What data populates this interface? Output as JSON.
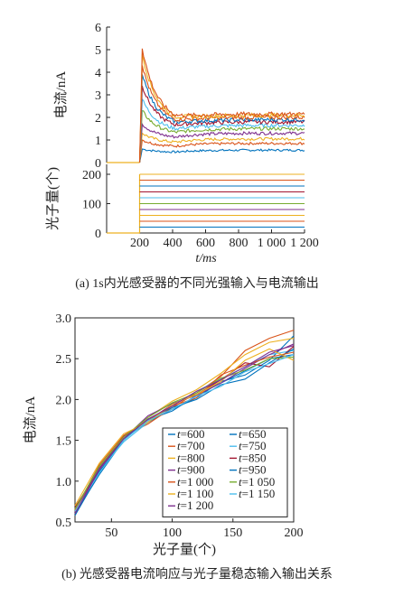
{
  "chart_data": [
    {
      "panel": "top",
      "type": "line",
      "ylabel": "电流/nA",
      "ylim": [
        0,
        6
      ],
      "yticks": [
        0,
        1,
        2,
        3,
        4,
        5,
        6
      ],
      "xlim": [
        0,
        1200
      ],
      "series": [
        {
          "color": "#0072BD",
          "peak": 0.6,
          "steady": 0.55
        },
        {
          "color": "#D95319",
          "peak": 1.0,
          "steady": 0.85
        },
        {
          "color": "#EDB120",
          "peak": 1.3,
          "steady": 1.05
        },
        {
          "color": "#7E2F8E",
          "peak": 1.7,
          "steady": 1.3
        },
        {
          "color": "#77AC30",
          "peak": 2.3,
          "steady": 1.5
        },
        {
          "color": "#4DBEEE",
          "peak": 2.8,
          "steady": 1.65
        },
        {
          "color": "#A2142F",
          "peak": 3.4,
          "steady": 1.8
        },
        {
          "color": "#0072BD",
          "peak": 3.9,
          "steady": 1.9
        },
        {
          "color": "#D95319",
          "peak": 4.3,
          "steady": 2.0
        },
        {
          "color": "#EDB120",
          "peak": 4.8,
          "steady": 2.1
        },
        {
          "color": "#D95319",
          "peak": 5.05,
          "steady": 2.15
        }
      ]
    },
    {
      "panel": "middle",
      "type": "line",
      "ylabel": "光子量(个)",
      "ylim": [
        0,
        200
      ],
      "yticks": [
        0,
        100,
        200
      ],
      "xlim": [
        0,
        1200
      ],
      "xticks": [
        200,
        400,
        600,
        800,
        1000,
        1200
      ],
      "xticklabels": [
        "200",
        "400",
        "600",
        "800",
        "1 000",
        "1 200"
      ],
      "xlabel": "t/ms",
      "step_x": 200,
      "levels": [
        20,
        40,
        60,
        80,
        100,
        120,
        140,
        160,
        180,
        200
      ]
    },
    {
      "panel": "bottom",
      "type": "line",
      "xlabel": "光子量(个)",
      "ylabel": "电流/nA",
      "xlim": [
        20,
        200
      ],
      "ylim": [
        0.5,
        3.0
      ],
      "xticks": [
        50,
        100,
        150,
        200
      ],
      "yticks": [
        0.5,
        1.0,
        1.5,
        2.0,
        2.5,
        3.0
      ],
      "yticklabels": [
        "0.5",
        "1.0",
        "1.5",
        "2.0",
        "2.5",
        "3.0"
      ],
      "x": [
        20,
        40,
        60,
        80,
        100,
        120,
        140,
        160,
        180,
        200
      ],
      "series": [
        {
          "name": "t=600",
          "color": "#0072BD",
          "values": [
            0.58,
            1.1,
            1.52,
            1.72,
            1.88,
            2.02,
            2.22,
            2.3,
            2.48,
            2.78
          ]
        },
        {
          "name": "t=650",
          "color": "#0072BD",
          "values": [
            0.6,
            1.08,
            1.5,
            1.75,
            1.86,
            2.05,
            2.2,
            2.35,
            2.5,
            2.55
          ]
        },
        {
          "name": "t=700",
          "color": "#D95319",
          "values": [
            0.62,
            1.15,
            1.55,
            1.7,
            1.9,
            2.08,
            2.28,
            2.6,
            2.75,
            2.85
          ]
        },
        {
          "name": "t=750",
          "color": "#4DBEEE",
          "values": [
            0.66,
            1.12,
            1.48,
            1.72,
            1.92,
            2.1,
            2.25,
            2.4,
            2.55,
            2.6
          ]
        },
        {
          "name": "t=800",
          "color": "#EDB120",
          "values": [
            0.65,
            1.18,
            1.52,
            1.78,
            1.98,
            2.12,
            2.32,
            2.55,
            2.7,
            2.75
          ]
        },
        {
          "name": "t=850",
          "color": "#A2142F",
          "values": [
            0.68,
            1.14,
            1.55,
            1.74,
            1.94,
            2.06,
            2.24,
            2.45,
            2.4,
            2.65
          ]
        },
        {
          "name": "t=900",
          "color": "#7E2F8E",
          "values": [
            0.62,
            1.16,
            1.52,
            1.8,
            1.95,
            2.05,
            2.2,
            2.38,
            2.55,
            2.68
          ]
        },
        {
          "name": "t=950",
          "color": "#0072BD",
          "values": [
            0.6,
            1.12,
            1.5,
            1.76,
            1.9,
            2.0,
            2.18,
            2.25,
            2.45,
            2.62
          ]
        },
        {
          "name": "t=1 000",
          "color": "#D95319",
          "values": [
            0.64,
            1.2,
            1.56,
            1.74,
            1.92,
            2.02,
            2.3,
            2.42,
            2.52,
            2.58
          ]
        },
        {
          "name": "t=1 050",
          "color": "#77AC30",
          "values": [
            0.66,
            1.18,
            1.54,
            1.78,
            1.96,
            2.08,
            2.26,
            2.36,
            2.5,
            2.52
          ]
        },
        {
          "name": "t=1 100",
          "color": "#EDB120",
          "values": [
            0.7,
            1.22,
            1.58,
            1.72,
            1.94,
            2.06,
            2.22,
            2.48,
            2.62,
            2.48
          ]
        },
        {
          "name": "t=1 150",
          "color": "#4DBEEE",
          "values": [
            0.63,
            1.1,
            1.5,
            1.74,
            1.88,
            2.04,
            2.16,
            2.34,
            2.44,
            2.55
          ]
        },
        {
          "name": "t=1 200",
          "color": "#7E2F8E",
          "values": [
            0.6,
            1.14,
            1.52,
            1.76,
            1.92,
            2.1,
            2.24,
            2.4,
            2.58,
            2.66
          ]
        }
      ]
    }
  ],
  "captions": {
    "a": "(a) 1s内光感受器的不同光强输入与电流输出",
    "b": "(b) 光感受器电流响应与光子量稳态输入输出关系"
  }
}
